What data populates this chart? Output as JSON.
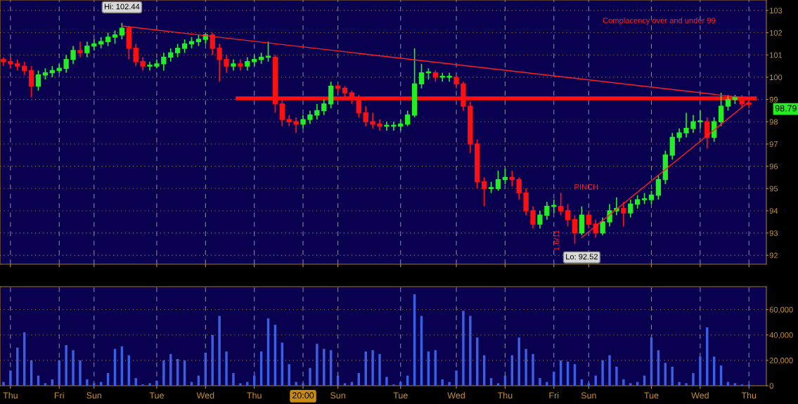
{
  "chart_data": [
    {
      "type": "candlestick",
      "categories": [
        null,
        null,
        null,
        null,
        null,
        null,
        null,
        null,
        null,
        null,
        null,
        null,
        null,
        null,
        null,
        null,
        null,
        null,
        null,
        null,
        null,
        null,
        null,
        null,
        null,
        null,
        null,
        null,
        null,
        null,
        null,
        null,
        null,
        null,
        null,
        null,
        null,
        null,
        null,
        null,
        null,
        null,
        null,
        null,
        null,
        null,
        null,
        null,
        null,
        null,
        null,
        null,
        null,
        null,
        null,
        null,
        null,
        null,
        null,
        null,
        null,
        null,
        null,
        null,
        null,
        null,
        null,
        null,
        null,
        null,
        null,
        null,
        null,
        null,
        null,
        null,
        null,
        null,
        null,
        null,
        null,
        null,
        null,
        null,
        null,
        null,
        null,
        null,
        null,
        null,
        null,
        null,
        null,
        null,
        null,
        null,
        null,
        null,
        null,
        null,
        null,
        null,
        null,
        null,
        null,
        null,
        null,
        null
      ],
      "ohlc": [
        [
          100.8,
          100.9,
          100.5,
          100.7
        ],
        [
          100.7,
          100.9,
          100.4,
          100.6
        ],
        [
          100.6,
          100.8,
          100.3,
          100.5
        ],
        [
          100.5,
          100.7,
          100.1,
          100.3
        ],
        [
          100.3,
          100.5,
          99.1,
          99.6
        ],
        [
          99.6,
          100.3,
          99.4,
          100.1
        ],
        [
          100.1,
          100.4,
          99.9,
          100.2
        ],
        [
          100.2,
          100.5,
          100.0,
          100.3
        ],
        [
          100.3,
          100.6,
          100.2,
          100.4
        ],
        [
          100.4,
          101.0,
          100.2,
          100.8
        ],
        [
          100.8,
          101.4,
          100.6,
          101.2
        ],
        [
          101.2,
          101.6,
          100.9,
          101.1
        ],
        [
          101.1,
          101.6,
          100.9,
          101.4
        ],
        [
          101.4,
          101.7,
          101.2,
          101.5
        ],
        [
          101.5,
          101.8,
          101.3,
          101.6
        ],
        [
          101.6,
          102.0,
          101.4,
          101.8
        ],
        [
          101.8,
          102.1,
          101.5,
          101.9
        ],
        [
          101.9,
          102.44,
          101.7,
          102.2
        ],
        [
          102.2,
          102.3,
          100.8,
          101.3
        ],
        [
          101.3,
          101.5,
          100.5,
          100.7
        ],
        [
          100.7,
          100.9,
          100.3,
          100.5
        ],
        [
          100.5,
          100.7,
          100.3,
          100.5
        ],
        [
          100.5,
          100.8,
          100.4,
          100.6
        ],
        [
          100.6,
          101.1,
          100.3,
          100.9
        ],
        [
          100.9,
          101.3,
          100.7,
          101.1
        ],
        [
          101.1,
          101.5,
          100.9,
          101.3
        ],
        [
          101.3,
          101.7,
          101.1,
          101.5
        ],
        [
          101.5,
          101.8,
          101.3,
          101.6
        ],
        [
          101.6,
          101.9,
          101.4,
          101.7
        ],
        [
          101.7,
          102.0,
          101.5,
          101.9
        ],
        [
          101.9,
          102.0,
          101.0,
          101.3
        ],
        [
          101.3,
          101.5,
          99.8,
          100.8
        ],
        [
          100.8,
          101.0,
          100.2,
          100.5
        ],
        [
          100.5,
          100.8,
          100.3,
          100.6
        ],
        [
          100.6,
          100.8,
          100.3,
          100.5
        ],
        [
          100.5,
          100.9,
          100.3,
          100.7
        ],
        [
          100.7,
          101.0,
          100.5,
          100.8
        ],
        [
          100.8,
          101.1,
          100.6,
          100.9
        ],
        [
          100.9,
          101.6,
          100.7,
          100.9
        ],
        [
          100.9,
          101.0,
          98.4,
          98.8
        ],
        [
          98.8,
          99.0,
          97.8,
          98.1
        ],
        [
          98.1,
          98.3,
          97.8,
          98.0
        ],
        [
          98.0,
          98.2,
          97.5,
          97.9
        ],
        [
          97.9,
          98.3,
          97.7,
          98.1
        ],
        [
          98.1,
          98.5,
          97.9,
          98.3
        ],
        [
          98.3,
          98.8,
          98.1,
          98.5
        ],
        [
          98.5,
          99.0,
          98.3,
          98.8
        ],
        [
          98.8,
          99.8,
          98.6,
          99.6
        ],
        [
          99.6,
          99.7,
          99.3,
          99.5
        ],
        [
          99.5,
          99.6,
          99.1,
          99.3
        ],
        [
          99.3,
          99.4,
          98.8,
          99.0
        ],
        [
          99.0,
          99.2,
          98.2,
          98.4
        ],
        [
          98.4,
          98.7,
          97.8,
          98.0
        ],
        [
          98.0,
          98.4,
          97.7,
          97.9
        ],
        [
          97.9,
          98.1,
          97.6,
          97.8
        ],
        [
          97.8,
          98.0,
          97.6,
          97.8
        ],
        [
          97.8,
          98.0,
          97.6,
          97.8
        ],
        [
          97.8,
          98.1,
          97.6,
          97.9
        ],
        [
          97.9,
          98.5,
          97.8,
          98.3
        ],
        [
          98.3,
          101.3,
          98.2,
          99.7
        ],
        [
          99.7,
          100.6,
          99.5,
          100.2
        ],
        [
          100.2,
          100.4,
          99.9,
          100.2
        ],
        [
          100.2,
          100.3,
          99.8,
          100.0
        ],
        [
          100.0,
          100.2,
          99.8,
          100.0
        ],
        [
          100.0,
          100.2,
          99.8,
          100.0
        ],
        [
          100.0,
          100.1,
          99.5,
          99.7
        ],
        [
          99.7,
          99.8,
          98.5,
          98.7
        ],
        [
          98.7,
          98.9,
          96.6,
          97.0
        ],
        [
          97.0,
          97.2,
          95.0,
          95.3
        ],
        [
          95.3,
          95.5,
          94.2,
          95.0
        ],
        [
          95.0,
          95.3,
          94.8,
          95.0
        ],
        [
          95.0,
          95.8,
          94.9,
          95.4
        ],
        [
          95.4,
          95.9,
          95.2,
          95.5
        ],
        [
          95.5,
          95.8,
          95.1,
          95.4
        ],
        [
          95.4,
          95.5,
          94.5,
          94.8
        ],
        [
          94.8,
          95.0,
          93.8,
          94.0
        ],
        [
          94.0,
          94.2,
          93.2,
          93.4
        ],
        [
          93.4,
          94.0,
          93.2,
          93.8
        ],
        [
          93.8,
          94.4,
          93.6,
          94.2
        ],
        [
          94.2,
          94.5,
          93.9,
          94.2
        ],
        [
          94.2,
          94.8,
          93.8,
          94.0
        ],
        [
          94.0,
          94.3,
          93.3,
          93.6
        ],
        [
          93.6,
          93.8,
          92.52,
          93.0
        ],
        [
          93.0,
          94.2,
          92.9,
          93.8
        ],
        [
          93.8,
          94.0,
          93.2,
          93.4
        ],
        [
          93.4,
          93.6,
          92.8,
          93.0
        ],
        [
          93.0,
          93.7,
          92.9,
          93.5
        ],
        [
          93.5,
          94.3,
          93.3,
          94.0
        ],
        [
          94.0,
          94.6,
          93.8,
          94.1
        ],
        [
          94.1,
          94.4,
          93.3,
          93.9
        ],
        [
          93.9,
          94.5,
          93.7,
          94.3
        ],
        [
          94.3,
          94.7,
          94.1,
          94.5
        ],
        [
          94.5,
          94.8,
          94.3,
          94.5
        ],
        [
          94.5,
          94.9,
          94.3,
          94.7
        ],
        [
          94.7,
          95.6,
          94.5,
          95.4
        ],
        [
          95.4,
          96.7,
          95.2,
          96.5
        ],
        [
          96.5,
          97.5,
          96.3,
          97.3
        ],
        [
          97.3,
          97.7,
          97.1,
          97.5
        ],
        [
          97.5,
          98.4,
          97.3,
          97.7
        ],
        [
          97.7,
          98.3,
          97.5,
          98.0
        ],
        [
          98.0,
          98.5,
          97.7,
          98.0
        ],
        [
          98.0,
          98.2,
          96.8,
          97.3
        ],
        [
          97.3,
          98.2,
          97.1,
          98.0
        ],
        [
          98.0,
          99.3,
          97.8,
          98.7
        ],
        [
          98.7,
          99.2,
          98.5,
          99.0
        ],
        [
          99.0,
          99.2,
          98.8,
          99.1
        ],
        [
          99.1,
          99.2,
          98.6,
          98.8
        ],
        [
          98.8,
          99.0,
          98.6,
          98.79
        ]
      ],
      "series": [
        {
          "type": "line",
          "color": "#ff2020",
          "values": [
            null,
            null,
            null,
            null,
            null,
            null,
            null,
            null,
            null,
            null,
            null,
            null,
            null,
            null,
            null,
            null,
            null,
            102.3,
            null,
            null,
            null,
            null,
            null,
            null,
            null,
            null,
            null,
            null,
            null,
            null,
            null,
            null,
            null,
            null,
            null,
            null,
            null,
            null,
            null,
            null,
            null,
            null,
            null,
            null,
            null,
            null,
            null,
            null,
            null,
            null,
            null,
            null,
            null,
            null,
            null,
            null,
            null,
            null,
            null,
            null,
            null,
            null,
            null,
            null,
            null,
            null,
            null,
            null,
            null,
            null,
            null,
            null,
            null,
            null,
            null,
            null,
            null,
            null,
            null,
            null,
            null,
            null,
            null,
            null,
            null,
            null,
            null,
            null,
            null,
            null,
            null,
            null,
            null,
            null,
            null,
            null,
            null,
            null,
            null,
            null,
            null,
            null,
            null,
            null,
            null,
            null,
            null,
            99.05
          ]
        },
        {
          "type": "line",
          "color": "#ff2020",
          "values": [
            null,
            null,
            null,
            null,
            null,
            null,
            null,
            null,
            null,
            null,
            null,
            null,
            null,
            null,
            null,
            null,
            null,
            null,
            null,
            null,
            null,
            null,
            null,
            null,
            null,
            null,
            null,
            null,
            null,
            null,
            null,
            null,
            null,
            null,
            null,
            null,
            null,
            null,
            null,
            null,
            null,
            null,
            null,
            null,
            null,
            null,
            null,
            null,
            null,
            null,
            null,
            null,
            null,
            null,
            null,
            null,
            null,
            null,
            null,
            null,
            null,
            null,
            null,
            null,
            null,
            null,
            null,
            null,
            null,
            null,
            null,
            null,
            null,
            null,
            null,
            null,
            null,
            null,
            null,
            null,
            null,
            null,
            null,
            92.8,
            null,
            null,
            null,
            null,
            null,
            null,
            null,
            null,
            null,
            null,
            null,
            null,
            null,
            null,
            null,
            null,
            null,
            null,
            null,
            null,
            null,
            null,
            null,
            98.9
          ]
        }
      ],
      "ref_lines": [
        {
          "axis": "y",
          "value": 99.05,
          "color": "#ff1010"
        }
      ],
      "annotations": [
        {
          "text": "Hi: 102.44",
          "y": 102.44
        },
        "Lo: 92.52",
        "98.79",
        "Complacency over and under 99",
        "PINCH",
        "1.6/11"
      ],
      "ylim": [
        91.6,
        103.47
      ],
      "yticks": [
        92,
        93,
        94,
        95,
        96,
        97,
        98,
        99,
        100,
        101,
        102,
        103
      ],
      "grid": true
    },
    {
      "type": "bar",
      "color": "#3a5fe0",
      "categories": [
        null,
        "Thu",
        null,
        null,
        null,
        null,
        null,
        null,
        "Fri",
        null,
        null,
        null,
        null,
        "Sun",
        null,
        null,
        null,
        null,
        null,
        null,
        null,
        null,
        "Tue",
        null,
        null,
        null,
        null,
        null,
        null,
        "Wed",
        null,
        null,
        null,
        null,
        null,
        null,
        "Thu",
        null,
        null,
        null,
        null,
        null,
        null,
        "20:00",
        null,
        null,
        null,
        null,
        "Sun",
        null,
        null,
        null,
        null,
        null,
        null,
        null,
        null,
        "Tue",
        null,
        null,
        null,
        null,
        null,
        null,
        null,
        "Wed",
        null,
        null,
        null,
        null,
        null,
        null,
        "Thu",
        null,
        null,
        null,
        null,
        null,
        null,
        "Fri",
        null,
        null,
        null,
        null,
        "Sun",
        null,
        null,
        null,
        null,
        null,
        null,
        null,
        null,
        "Tue",
        null,
        null,
        null,
        null,
        null,
        null,
        "Wed",
        null,
        null,
        null,
        null,
        null,
        null,
        "Thu"
      ],
      "values": [
        3000,
        12000,
        30000,
        42000,
        20000,
        8000,
        2000,
        5000,
        20000,
        32000,
        28000,
        20000,
        5000,
        2000,
        3000,
        10000,
        29000,
        31000,
        24000,
        6000,
        1000,
        2000,
        4000,
        20000,
        25000,
        21000,
        20000,
        3000,
        8000,
        26000,
        40000,
        55000,
        27000,
        10000,
        2000,
        3000,
        8000,
        27000,
        53000,
        48000,
        34000,
        17000,
        3000,
        2000,
        14000,
        33000,
        29000,
        28000,
        8000,
        2000,
        3000,
        10000,
        27000,
        28000,
        25000,
        7000,
        1000,
        3000,
        8000,
        72000,
        55000,
        27000,
        28000,
        5000,
        3000,
        12000,
        59000,
        55000,
        38000,
        24000,
        6000,
        2000,
        8000,
        24000,
        38000,
        29000,
        25000,
        6000,
        3000,
        11000,
        20000,
        19000,
        17000,
        5000,
        2000,
        8000,
        20000,
        24000,
        15000,
        5000,
        2000,
        3000,
        8000,
        38000,
        28000,
        18000,
        15000,
        3000,
        2000,
        10000,
        23000,
        46000,
        23000,
        16000,
        3000,
        2000,
        1000,
        1000
      ],
      "ylim": [
        0,
        78000
      ],
      "yticks": [
        {
          "value": 0,
          "label": "0"
        },
        {
          "value": 20000,
          "label": "20,000"
        },
        {
          "value": 40000,
          "label": "40,000"
        },
        {
          "value": 60000,
          "label": "60,000"
        }
      ],
      "grid": true
    }
  ]
}
